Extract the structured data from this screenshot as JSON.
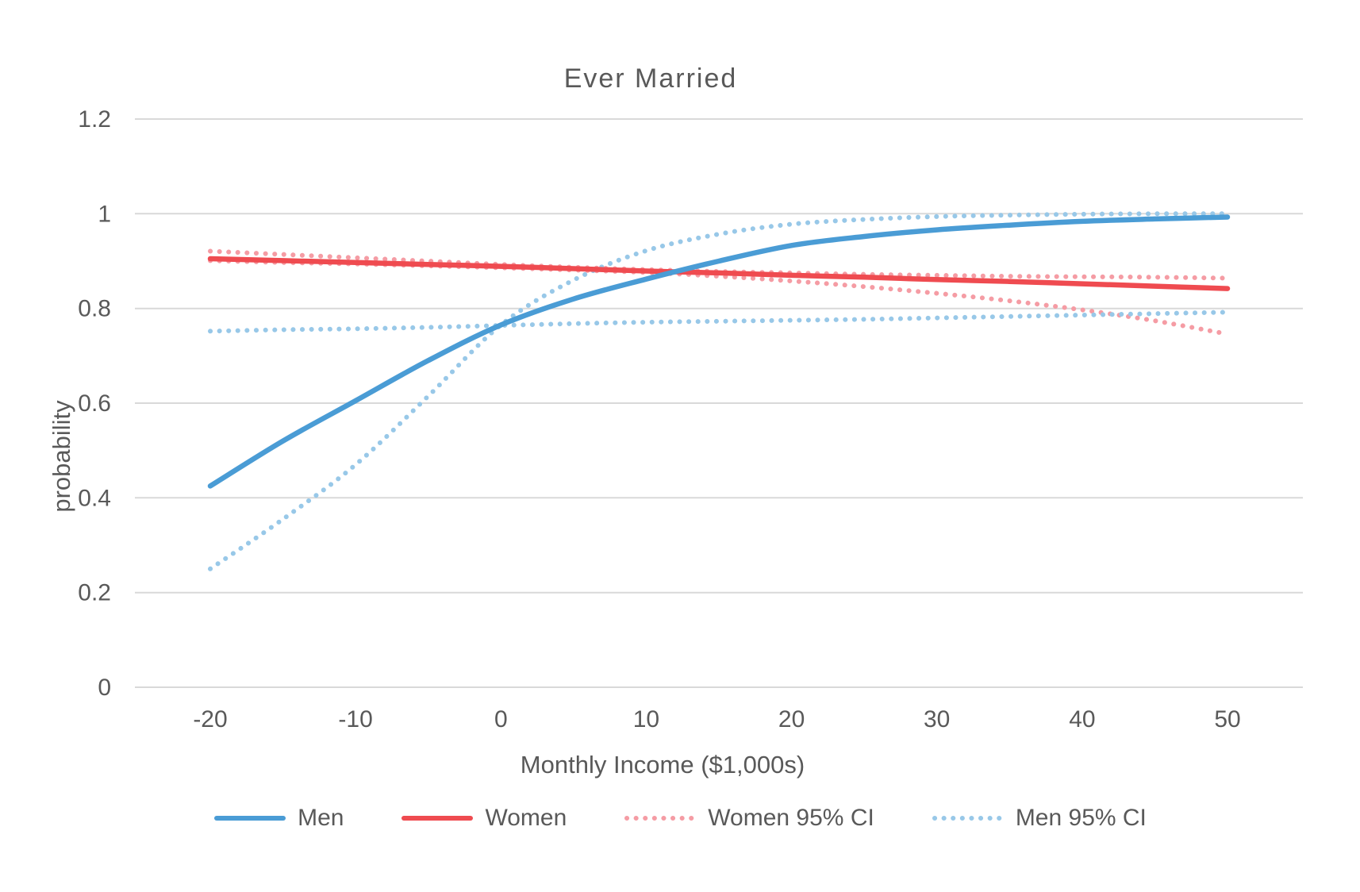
{
  "chart_data": {
    "type": "line",
    "title": "Ever  Married",
    "xlabel": "Monthly Income ($1,000s)",
    "ylabel": "probability",
    "xlim": [
      -20,
      50
    ],
    "ylim": [
      0,
      1.2
    ],
    "x_ticks": [
      -20,
      -10,
      0,
      10,
      20,
      30,
      40,
      50
    ],
    "y_ticks": [
      0,
      0.2,
      0.4,
      0.6,
      0.8,
      1,
      1.2
    ],
    "y_tick_labels": [
      "0",
      "0.2",
      "0.4",
      "0.6",
      "0.8",
      "1",
      "1.2"
    ],
    "grid": "horizontal",
    "grid_color": "#D9D9D9",
    "text_color": "#595959",
    "legend_position": "bottom",
    "x": [
      -20,
      -15,
      -10,
      -5,
      0,
      5,
      10,
      15,
      20,
      25,
      30,
      35,
      40,
      45,
      50
    ],
    "series": [
      {
        "name": "Men",
        "color": "#4A9CD5",
        "style": "solid",
        "values": [
          0.425,
          0.52,
          0.605,
          0.69,
          0.765,
          0.82,
          0.862,
          0.9,
          0.933,
          0.952,
          0.966,
          0.976,
          0.984,
          0.989,
          0.993
        ]
      },
      {
        "name": "Women",
        "color": "#EF4B50",
        "style": "solid",
        "values": [
          0.905,
          0.901,
          0.897,
          0.893,
          0.889,
          0.884,
          0.879,
          0.875,
          0.87,
          0.866,
          0.861,
          0.857,
          0.852,
          0.847,
          0.842
        ]
      },
      {
        "name": "Women 95% CI (upper)",
        "color": "#F59CA4",
        "style": "dotted",
        "values": [
          0.921,
          0.914,
          0.907,
          0.9,
          0.893,
          0.887,
          0.882,
          0.878,
          0.875,
          0.872,
          0.87,
          0.868,
          0.867,
          0.866,
          0.864
        ]
      },
      {
        "name": "Women 95% CI (lower)",
        "color": "#F59CA4",
        "style": "dotted",
        "values": [
          0.901,
          0.897,
          0.894,
          0.89,
          0.886,
          0.881,
          0.876,
          0.868,
          0.858,
          0.846,
          0.832,
          0.816,
          0.797,
          0.774,
          0.746
        ]
      },
      {
        "name": "Men 95% CI (flat edge)",
        "color": "#98C8E8",
        "style": "dotted",
        "values": [
          0.752,
          0.755,
          0.757,
          0.76,
          0.764,
          0.768,
          0.771,
          0.773,
          0.775,
          0.777,
          0.78,
          0.783,
          0.786,
          0.789,
          0.792
        ]
      },
      {
        "name": "Men 95% CI (steep edge)",
        "color": "#98C8E8",
        "style": "dotted",
        "values": [
          0.25,
          0.355,
          0.47,
          0.615,
          0.765,
          0.86,
          0.922,
          0.957,
          0.978,
          0.988,
          0.994,
          0.997,
          0.999,
          1.0,
          1.0
        ]
      }
    ]
  },
  "legend": {
    "items": [
      {
        "label": "Men",
        "color": "#4A9CD5",
        "style": "solid"
      },
      {
        "label": "Women",
        "color": "#EF4B50",
        "style": "solid"
      },
      {
        "label": "Women 95% CI",
        "color": "#F59CA4",
        "style": "dotted"
      },
      {
        "label": "Men 95% CI",
        "color": "#98C8E8",
        "style": "dotted"
      }
    ]
  }
}
